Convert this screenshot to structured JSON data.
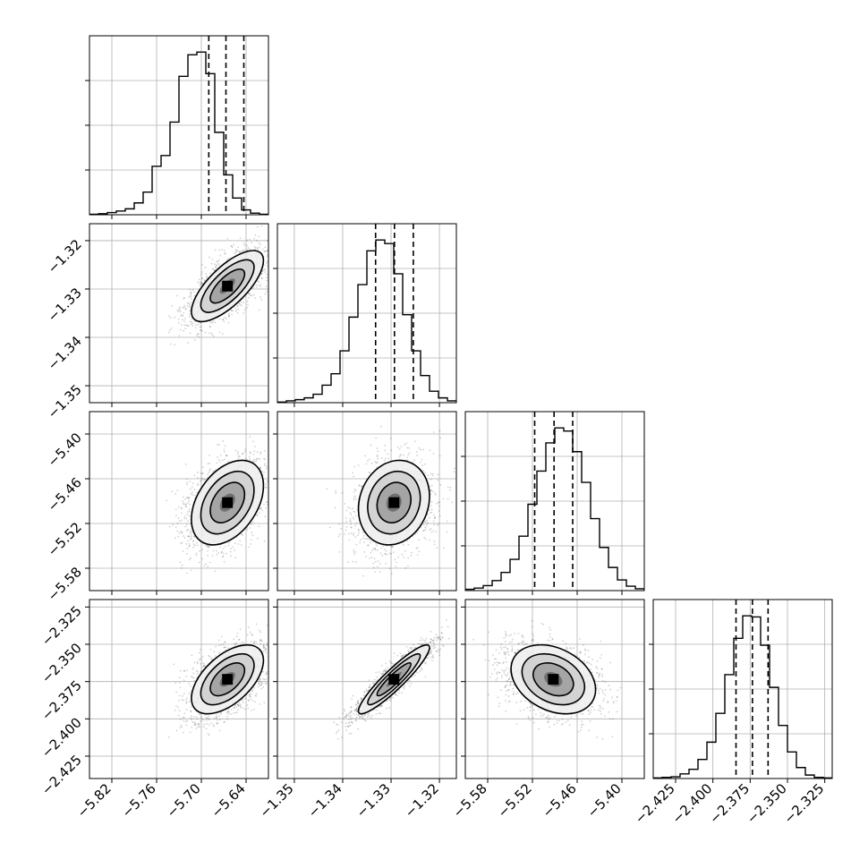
{
  "chart_data": {
    "type": "corner",
    "parameters": [
      {
        "ticks": [
          -5.82,
          -5.76,
          -5.7,
          -5.64
        ],
        "tick_labels": [
          "−5.82",
          "−5.76",
          "−5.70",
          "−5.64"
        ],
        "range": [
          -5.85,
          -5.61
        ],
        "mean": -5.665,
        "sigma": 0.023,
        "quantiles": [
          -5.69,
          -5.667,
          -5.643
        ],
        "hist": [
          1,
          2,
          4,
          7,
          11,
          22,
          42,
          90,
          110,
          172,
          257,
          297,
          302,
          262,
          153,
          74,
          31,
          9,
          3,
          1
        ]
      },
      {
        "ticks": [
          -1.35,
          -1.34,
          -1.33,
          -1.32
        ],
        "tick_labels": [
          "−1.35",
          "−1.34",
          "−1.33",
          "−1.32"
        ],
        "range": [
          -1.3535,
          -1.3165
        ],
        "mean": -1.3294,
        "sigma": 0.0035,
        "quantiles": [
          -1.3332,
          -1.3293,
          -1.3254
        ],
        "hist": [
          1,
          3,
          5,
          8,
          14,
          29,
          48,
          86,
          142,
          196,
          252,
          270,
          264,
          214,
          146,
          86,
          45,
          19,
          8,
          3
        ]
      },
      {
        "ticks": [
          -5.58,
          -5.52,
          -5.46,
          -5.4
        ],
        "tick_labels": [
          "−5.58",
          "−5.52",
          "−5.46",
          "−5.40"
        ],
        "range": [
          -5.61,
          -5.37
        ],
        "mean": -5.492,
        "sigma": 0.027,
        "quantiles": [
          -5.517,
          -5.491,
          -5.466
        ],
        "hist": [
          2,
          4,
          8,
          16,
          29,
          50,
          87,
          138,
          191,
          236,
          260,
          255,
          222,
          173,
          115,
          69,
          37,
          17,
          7,
          3
        ]
      },
      {
        "ticks": [
          -2.425,
          -2.4,
          -2.375,
          -2.35,
          -2.325
        ],
        "tick_labels": [
          "−2.425",
          "−2.400",
          "−2.375",
          "−2.350",
          "−2.325"
        ],
        "range": [
          -2.44,
          -2.32
        ],
        "mean": -2.3735,
        "sigma": 0.011,
        "quantiles": [
          -2.3845,
          -2.3735,
          -2.363
        ],
        "hist": [
          1,
          2,
          3,
          8,
          16,
          33,
          63,
          113,
          180,
          243,
          282,
          280,
          231,
          158,
          92,
          46,
          19,
          6,
          2,
          1
        ]
      }
    ],
    "correlations": [
      [
        1,
        0.72,
        0.4,
        0.55
      ],
      [
        0.72,
        1,
        0.15,
        0.92
      ],
      [
        0.4,
        0.15,
        1,
        -0.3
      ],
      [
        0.55,
        0.92,
        -0.3,
        1
      ]
    ],
    "grid": true,
    "x_tick_rotation": 45,
    "y_tick_rotation": 45,
    "xlabels": [
      "",
      "",
      "",
      ""
    ],
    "ylabels": [
      "",
      "",
      "",
      ""
    ]
  }
}
